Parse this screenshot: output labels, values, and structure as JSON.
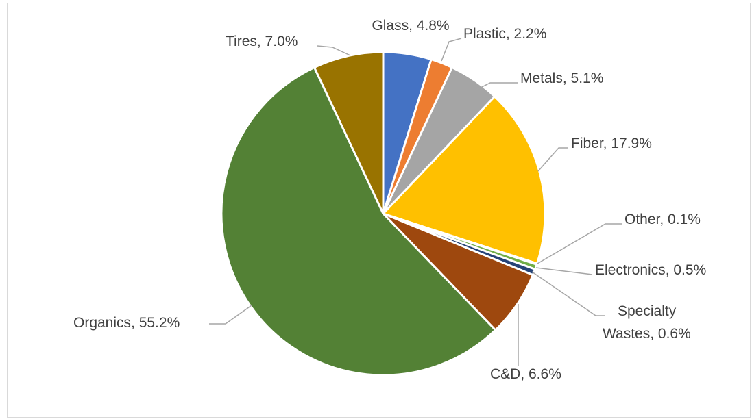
{
  "chart_data": {
    "type": "pie",
    "title": "",
    "slices": [
      {
        "name": "Glass",
        "value": 4.8,
        "label": "Glass, 4.8%",
        "color": "#4472C4"
      },
      {
        "name": "Plastic",
        "value": 2.2,
        "label": "Plastic, 2.2%",
        "color": "#ED7D31"
      },
      {
        "name": "Metals",
        "value": 5.1,
        "label": "Metals, 5.1%",
        "color": "#A5A5A5"
      },
      {
        "name": "Fiber",
        "value": 17.9,
        "label": "Fiber, 17.9%",
        "color": "#FFC000"
      },
      {
        "name": "Other",
        "value": 0.1,
        "label": "Other, 0.1%",
        "color": "#5B9BD5"
      },
      {
        "name": "Electronics",
        "value": 0.5,
        "label": "Electronics, 0.5%",
        "color": "#70AD47"
      },
      {
        "name": "Specialty Wastes",
        "value": 0.6,
        "label_lines": [
          "Specialty",
          "Wastes, 0.6%"
        ],
        "color": "#264478"
      },
      {
        "name": "C&D",
        "value": 6.6,
        "label": "C&D, 6.6%",
        "color": "#9E480E"
      },
      {
        "name": "Organics",
        "value": 55.2,
        "label": "Organics, 55.2%",
        "color": "#538135"
      },
      {
        "name": "Tires",
        "value": 7.0,
        "label": "Tires, 7.0%",
        "color": "#997300"
      }
    ],
    "start_angle": "12 o'clock",
    "direction": "clockwise",
    "legend": "none",
    "leader_line_color": "#A6A6A6",
    "label_color": "#404040"
  }
}
